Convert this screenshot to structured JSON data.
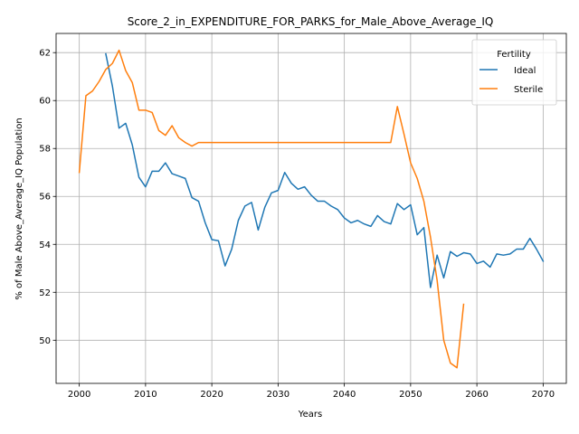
{
  "chart_data": {
    "type": "line",
    "title": "Score_2_in_EXPENDITURE_FOR_PARKS_for_Male_Above_Average_IQ",
    "xlabel": "Years",
    "ylabel": "% of Male Above_Average_IQ Population",
    "xlim": [
      1996.5,
      2073.5
    ],
    "ylim": [
      48.2,
      62.8
    ],
    "xticks": [
      2000,
      2010,
      2020,
      2030,
      2040,
      2050,
      2060,
      2070
    ],
    "yticks": [
      50,
      52,
      54,
      56,
      58,
      60,
      62
    ],
    "grid": true,
    "legend": {
      "title": "Fertility",
      "position": "top-right"
    },
    "series": [
      {
        "name": "Ideal",
        "color": "#1f77b4",
        "x": [
          2004,
          2005,
          2006,
          2007,
          2008,
          2009,
          2010,
          2011,
          2012,
          2013,
          2014,
          2015,
          2016,
          2017,
          2018,
          2019,
          2020,
          2021,
          2022,
          2023,
          2024,
          2025,
          2026,
          2027,
          2028,
          2029,
          2030,
          2031,
          2032,
          2033,
          2034,
          2035,
          2036,
          2037,
          2038,
          2039,
          2040,
          2041,
          2042,
          2043,
          2044,
          2045,
          2046,
          2047,
          2048,
          2049,
          2050,
          2051,
          2052,
          2053,
          2054,
          2055,
          2056,
          2057,
          2058,
          2059,
          2060,
          2061,
          2062,
          2063,
          2064,
          2065,
          2066,
          2067,
          2068,
          2069,
          2070
        ],
        "y": [
          61.95,
          60.6,
          58.85,
          59.05,
          58.15,
          56.8,
          56.4,
          57.05,
          57.05,
          57.4,
          56.95,
          56.85,
          56.75,
          55.95,
          55.8,
          54.9,
          54.2,
          54.15,
          53.1,
          53.8,
          55.0,
          55.6,
          55.75,
          54.6,
          55.55,
          56.15,
          56.25,
          57.0,
          56.55,
          56.3,
          56.4,
          56.05,
          55.8,
          55.8,
          55.6,
          55.45,
          55.1,
          54.9,
          55.0,
          54.85,
          54.75,
          55.2,
          54.95,
          54.85,
          55.7,
          55.45,
          55.65,
          54.4,
          54.7,
          52.2,
          53.55,
          52.6,
          53.7,
          53.5,
          53.65,
          53.6,
          53.2,
          53.3,
          53.05,
          53.6,
          53.55,
          53.6,
          53.8,
          53.8,
          54.25,
          53.8,
          53.3
        ]
      },
      {
        "name": "Sterile",
        "color": "#ff7f0e",
        "x": [
          2000,
          2001,
          2002,
          2003,
          2004,
          2005,
          2006,
          2007,
          2008,
          2009,
          2010,
          2011,
          2012,
          2013,
          2014,
          2015,
          2016,
          2017,
          2018,
          2019,
          2020,
          2021,
          2022,
          2023,
          2024,
          2025,
          2026,
          2027,
          2028,
          2029,
          2030,
          2031,
          2032,
          2033,
          2034,
          2035,
          2036,
          2037,
          2038,
          2039,
          2040,
          2041,
          2042,
          2043,
          2044,
          2045,
          2046,
          2047,
          2048,
          2049,
          2050,
          2051,
          2052,
          2053,
          2054,
          2055,
          2056,
          2057,
          2058
        ],
        "y": [
          57.0,
          60.2,
          60.4,
          60.8,
          61.3,
          61.55,
          62.1,
          61.25,
          60.75,
          59.6,
          59.6,
          59.5,
          58.75,
          58.55,
          58.95,
          58.45,
          58.25,
          58.1,
          58.25,
          58.25,
          58.25,
          58.25,
          58.25,
          58.25,
          58.25,
          58.25,
          58.25,
          58.25,
          58.25,
          58.25,
          58.25,
          58.25,
          58.25,
          58.25,
          58.25,
          58.25,
          58.25,
          58.25,
          58.25,
          58.25,
          58.25,
          58.25,
          58.25,
          58.25,
          58.25,
          58.25,
          58.25,
          58.25,
          59.75,
          58.6,
          57.4,
          56.75,
          55.8,
          54.3,
          52.5,
          50.0,
          49.05,
          48.85,
          51.5
        ]
      }
    ]
  }
}
